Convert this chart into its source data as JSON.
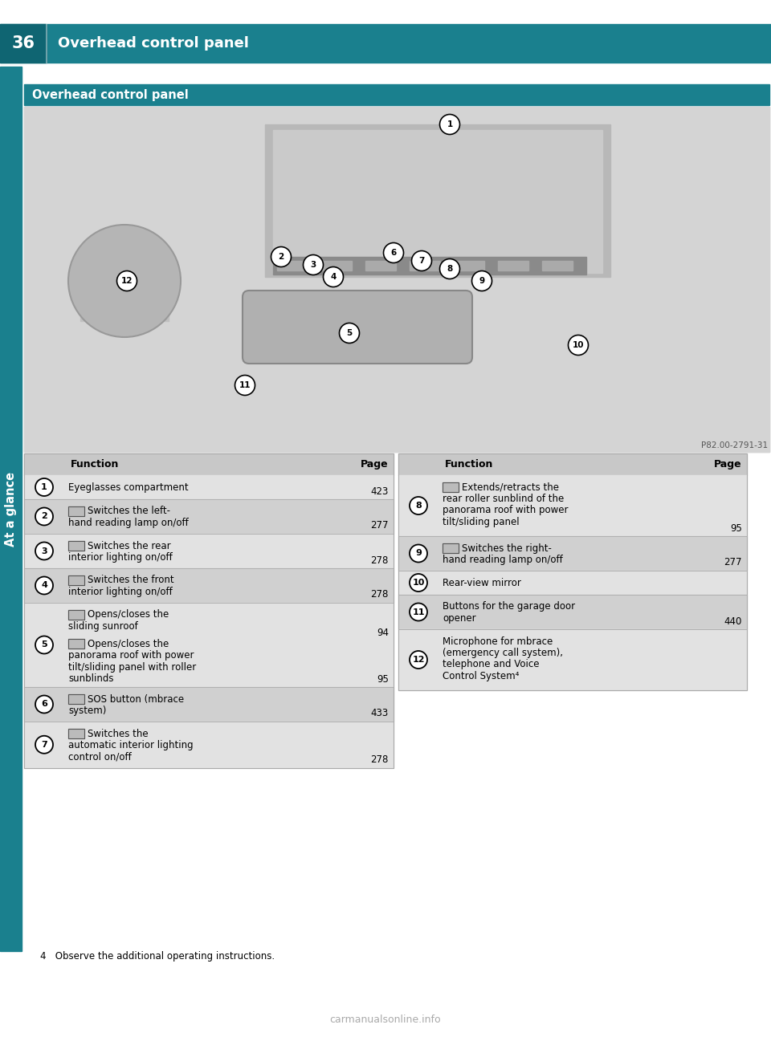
{
  "page_bg": "#ffffff",
  "teal": "#1a808e",
  "teal_dark": "#0f6572",
  "page_number": "36",
  "header_title": "Overhead control panel",
  "sidebar_label": "At a glance",
  "section_title": "Overhead control panel",
  "img_caption": "P82.00-2791-31",
  "hdr_bg": "#c8c8c8",
  "row0_bg": "#e2e2e2",
  "row1_bg": "#d0d0d0",
  "left_rows": [
    {
      "num": "1",
      "lines": [
        "Eyeglasses compartment"
      ],
      "page": "423",
      "page2": ""
    },
    {
      "num": "2",
      "lines": [
        "[img] Switches the left-",
        "hand reading lamp on/off"
      ],
      "page": "277",
      "page2": ""
    },
    {
      "num": "3",
      "lines": [
        "[img] Switches the rear",
        "interior lighting on/off"
      ],
      "page": "278",
      "page2": ""
    },
    {
      "num": "4",
      "lines": [
        "[img] Switches the front",
        "interior lighting on/off"
      ],
      "page": "278",
      "page2": ""
    },
    {
      "num": "5",
      "lines": [
        "[img] Opens/closes the",
        "sliding sunroof",
        "",
        "[img] Opens/closes the",
        "panorama roof with power",
        "tilt/sliding panel with roller",
        "sunblinds"
      ],
      "page": "95",
      "page2": "94"
    },
    {
      "num": "6",
      "lines": [
        "[sos] SOS button (mbrace",
        "system)"
      ],
      "page": "433",
      "page2": ""
    },
    {
      "num": "7",
      "lines": [
        "[img] Switches the",
        "automatic interior lighting",
        "control on/off"
      ],
      "page": "278",
      "page2": ""
    }
  ],
  "right_rows": [
    {
      "num": "8",
      "lines": [
        "[img] Extends/retracts the",
        "rear roller sunblind of the",
        "panorama roof with power",
        "tilt/sliding panel"
      ],
      "page": "95",
      "page2": ""
    },
    {
      "num": "9",
      "lines": [
        "[img] Switches the right-",
        "hand reading lamp on/off"
      ],
      "page": "277",
      "page2": ""
    },
    {
      "num": "10",
      "lines": [
        "Rear-view mirror"
      ],
      "page": "",
      "page2": ""
    },
    {
      "num": "11",
      "lines": [
        "Buttons for the garage door",
        "opener"
      ],
      "page": "440",
      "page2": ""
    },
    {
      "num": "12",
      "lines": [
        "Microphone for mbrace",
        "(emergency call system),",
        "telephone and Voice",
        "Control System⁴"
      ],
      "page": "",
      "page2": ""
    }
  ],
  "footnote": "4   Observe the additional operating instructions.",
  "watermark": "carmanualsonline.info"
}
